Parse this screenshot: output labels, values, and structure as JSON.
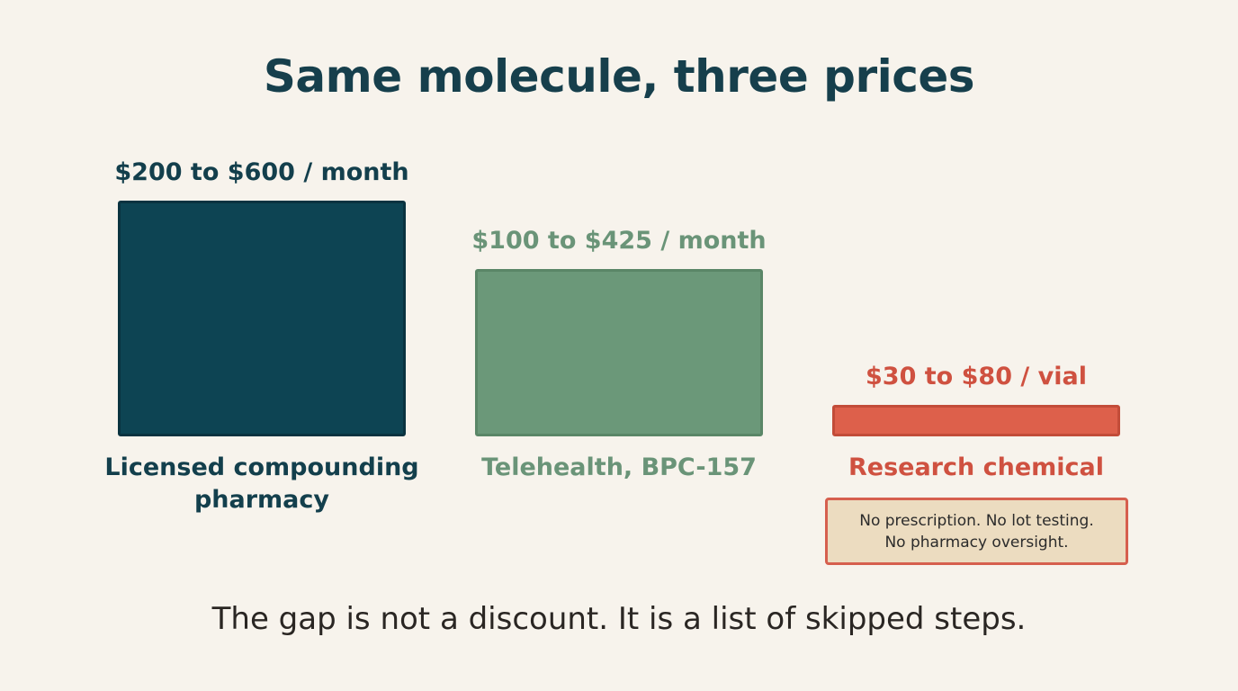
{
  "title": "Same molecule, three prices",
  "chart_data": {
    "type": "bar",
    "categories": [
      "Licensed compounding pharmacy",
      "Telehealth, BPC-157",
      "Research chemical"
    ],
    "value_labels": [
      "$200 to $600 / month",
      "$100 to $425 / month",
      "$30 to $80 / vial"
    ],
    "ranges": [
      [
        200,
        600
      ],
      [
        100,
        425
      ],
      [
        30,
        80
      ]
    ],
    "values": [
      600,
      425,
      80
    ],
    "colors": [
      "#0d4453",
      "#6b9879",
      "#dd604b"
    ],
    "text_colors": [
      "#133f4c",
      "#6a9478",
      "#cf5140"
    ],
    "ylim": [
      0,
      600
    ],
    "grid": false,
    "legend": "none"
  },
  "note": {
    "line1": "No prescription. No lot testing.",
    "line2": "No pharmacy oversight."
  },
  "footer": "The gap is not a discount. It is a list of skipped steps."
}
